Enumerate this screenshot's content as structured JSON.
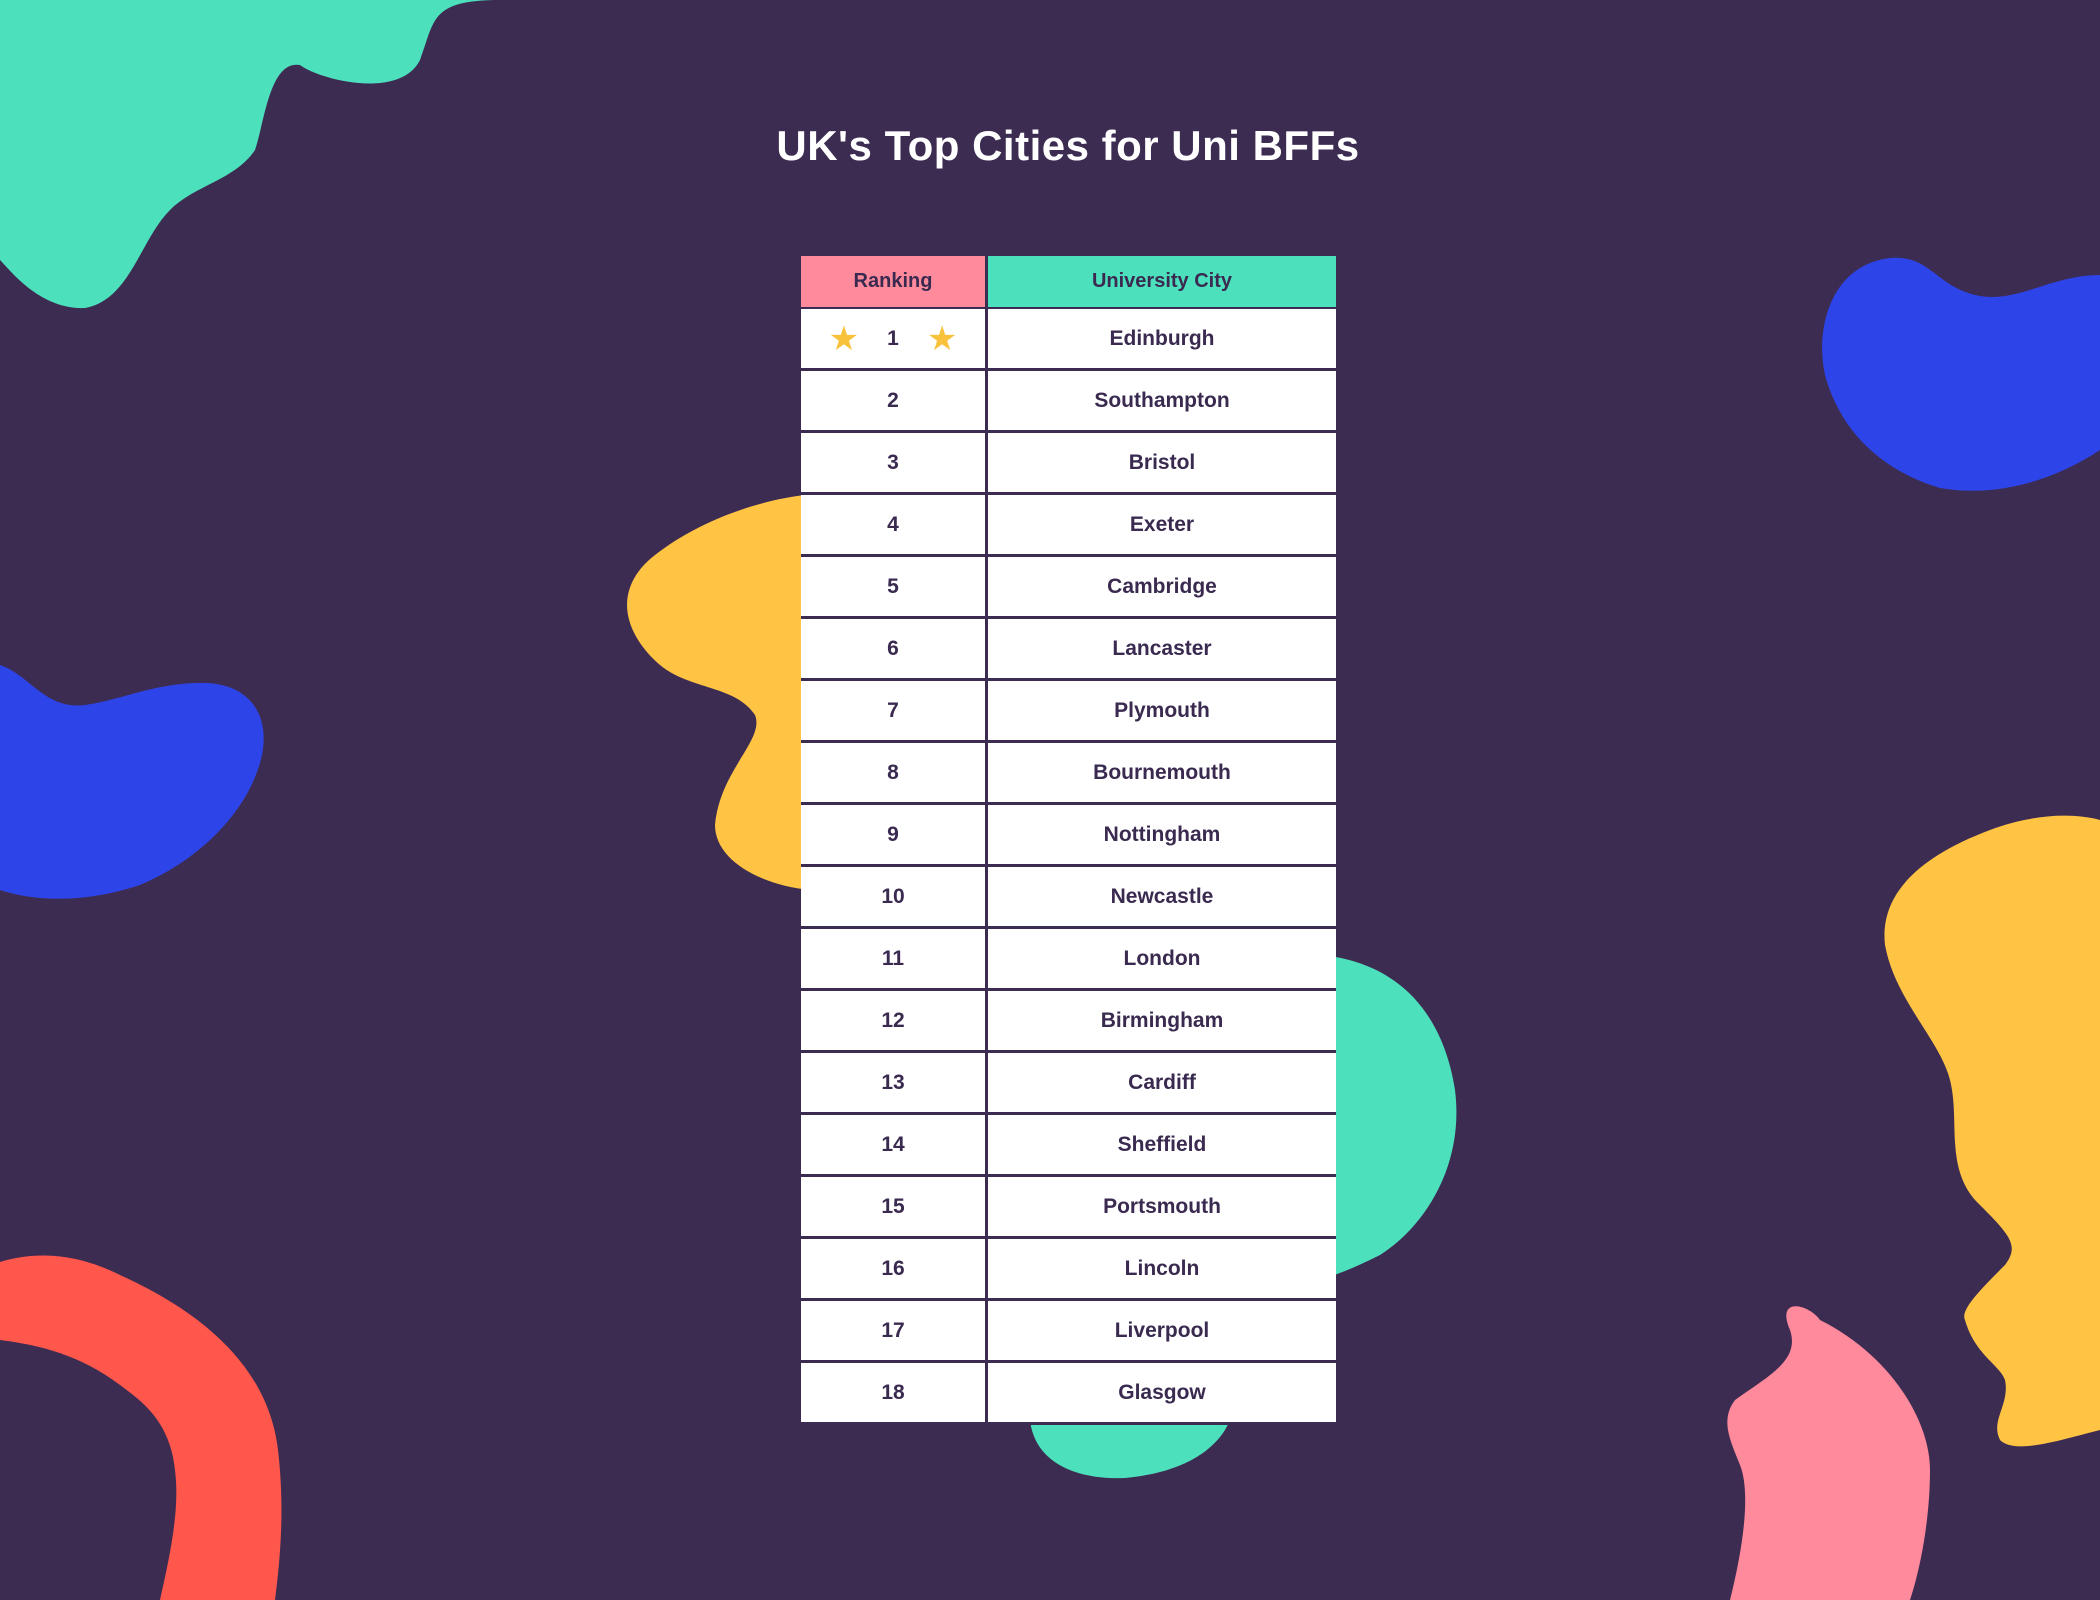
{
  "title": "UK's Top Cities for Uni BFFs",
  "table": {
    "headers": {
      "rank": "Ranking",
      "city": "University City"
    },
    "rows": [
      {
        "rank": "1",
        "city": "Edinburgh",
        "highlight": true
      },
      {
        "rank": "2",
        "city": "Southampton"
      },
      {
        "rank": "3",
        "city": "Bristol"
      },
      {
        "rank": "4",
        "city": "Exeter"
      },
      {
        "rank": "5",
        "city": "Cambridge"
      },
      {
        "rank": "6",
        "city": "Lancaster"
      },
      {
        "rank": "7",
        "city": "Plymouth"
      },
      {
        "rank": "8",
        "city": "Bournemouth"
      },
      {
        "rank": "9",
        "city": "Nottingham"
      },
      {
        "rank": "10",
        "city": "Newcastle"
      },
      {
        "rank": "11",
        "city": "London"
      },
      {
        "rank": "12",
        "city": "Birmingham"
      },
      {
        "rank": "13",
        "city": "Cardiff"
      },
      {
        "rank": "14",
        "city": "Sheffield"
      },
      {
        "rank": "15",
        "city": "Portsmouth"
      },
      {
        "rank": "16",
        "city": "Lincoln"
      },
      {
        "rank": "17",
        "city": "Liverpool"
      },
      {
        "rank": "18",
        "city": "Glasgow"
      }
    ]
  },
  "colors": {
    "background": "#3d2c52",
    "teal": "#4de0bd",
    "blue": "#2d44e8",
    "yellow": "#ffc444",
    "coral": "#ff574b",
    "pink": "#ff8a9c",
    "star": "#f9c23c"
  },
  "icons": {
    "highlight": "star-icon"
  }
}
